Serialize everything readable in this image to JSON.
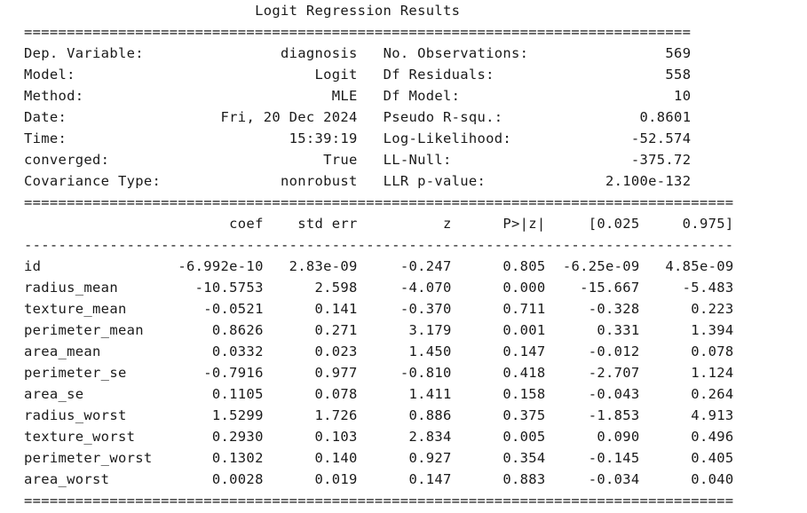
{
  "title": "Logit Regression Results",
  "summary": {
    "rows": [
      {
        "left_label": "Dep. Variable:",
        "left_value": "diagnosis",
        "right_label": "No. Observations:",
        "right_value": "569"
      },
      {
        "left_label": "Model:",
        "left_value": "Logit",
        "right_label": "Df Residuals:",
        "right_value": "558"
      },
      {
        "left_label": "Method:",
        "left_value": "MLE",
        "right_label": "Df Model:",
        "right_value": "10"
      },
      {
        "left_label": "Date:",
        "left_value": "Fri, 20 Dec 2024",
        "right_label": "Pseudo R-squ.:",
        "right_value": "0.8601"
      },
      {
        "left_label": "Time:",
        "left_value": "15:39:19",
        "right_label": "Log-Likelihood:",
        "right_value": "-52.574"
      },
      {
        "left_label": "converged:",
        "left_value": "True",
        "right_label": "LL-Null:",
        "right_value": "-375.72"
      },
      {
        "left_label": "Covariance Type:",
        "left_value": "nonrobust",
        "right_label": "LLR p-value:",
        "right_value": "2.100e-132"
      }
    ]
  },
  "coef_table": {
    "headers": [
      "",
      "coef",
      "std err",
      "z",
      "P>|z|",
      "[0.025",
      "0.975]"
    ],
    "rows": [
      [
        "id",
        "-6.992e-10",
        "2.83e-09",
        "-0.247",
        "0.805",
        "-6.25e-09",
        "4.85e-09"
      ],
      [
        "radius_mean",
        "-10.5753",
        "2.598",
        "-4.070",
        "0.000",
        "-15.667",
        "-5.483"
      ],
      [
        "texture_mean",
        "-0.0521",
        "0.141",
        "-0.370",
        "0.711",
        "-0.328",
        "0.223"
      ],
      [
        "perimeter_mean",
        "0.8626",
        "0.271",
        "3.179",
        "0.001",
        "0.331",
        "1.394"
      ],
      [
        "area_mean",
        "0.0332",
        "0.023",
        "1.450",
        "0.147",
        "-0.012",
        "0.078"
      ],
      [
        "perimeter_se",
        "-0.7916",
        "0.977",
        "-0.810",
        "0.418",
        "-2.707",
        "1.124"
      ],
      [
        "area_se",
        "0.1105",
        "0.078",
        "1.411",
        "0.158",
        "-0.043",
        "0.264"
      ],
      [
        "radius_worst",
        "1.5299",
        "1.726",
        "0.886",
        "0.375",
        "-1.853",
        "4.913"
      ],
      [
        "texture_worst",
        "0.2930",
        "0.103",
        "2.834",
        "0.005",
        "0.090",
        "0.496"
      ],
      [
        "perimeter_worst",
        "0.1302",
        "0.140",
        "0.927",
        "0.354",
        "-0.145",
        "0.405"
      ],
      [
        "area_worst",
        "0.0028",
        "0.019",
        "0.147",
        "0.883",
        "-0.034",
        "0.040"
      ]
    ]
  },
  "rules": {
    "double_top": "==============================================================================",
    "double_wide": "===================================================================================",
    "dashed_wide": "-----------------------------------------------------------------------------------"
  }
}
